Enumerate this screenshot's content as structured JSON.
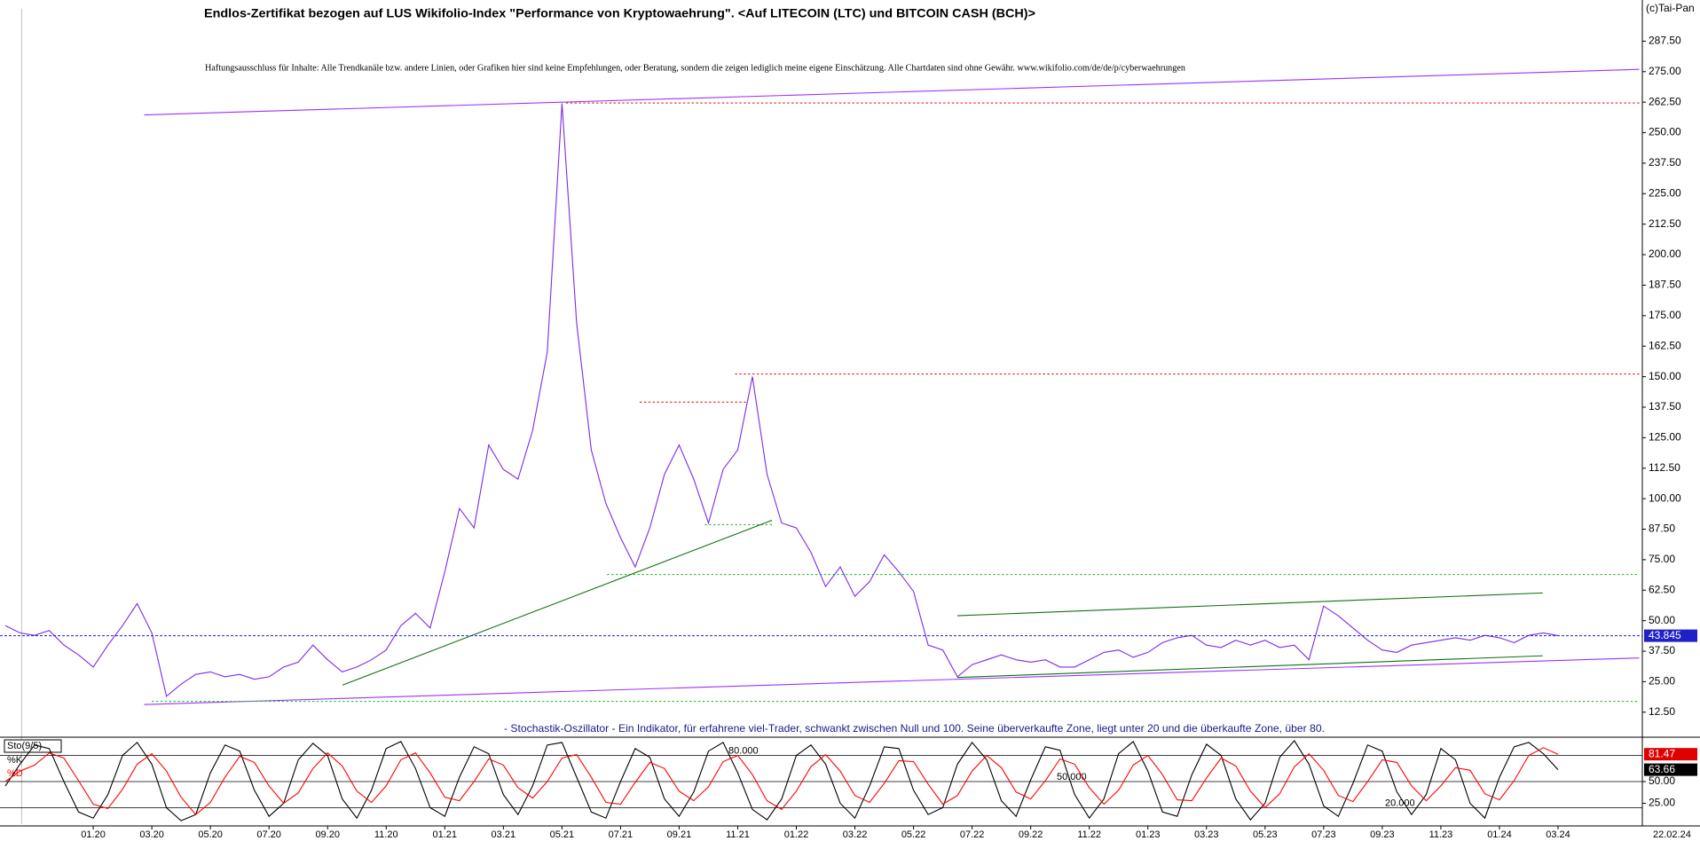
{
  "watermark": "(c)Tai-Pan",
  "date": "22.02.24",
  "chart_data": [
    {
      "type": "line",
      "title": "Endlos-Zertifikat bezogen auf LUS Wikifolio-Index \"Performance von Kryptowaehrung\". <Auf LITECOIN (LTC) und BITCOIN CASH (BCH)>",
      "subtitle": "Haftungsausschluss für Inhalte: Alle Trendkanäle bzw. andere Linien, oder Grafiken hier sind keine Empfehlungen, oder Beratung, sondern die zeigen lediglich meine eigene Einschätzung. Alle Chartdaten sind ohne Gewähr. www.wikifolio.com/de/de/p/cyberwaehrungen",
      "categories": [
        null,
        null,
        null,
        null,
        null,
        null,
        "01.20",
        null,
        null,
        null,
        "03.20",
        null,
        null,
        null,
        "05.20",
        null,
        null,
        null,
        "07.20",
        null,
        null,
        null,
        "09.20",
        null,
        null,
        null,
        "11.20",
        null,
        null,
        null,
        "01.21",
        null,
        null,
        null,
        "03.21",
        null,
        null,
        null,
        "05.21",
        null,
        null,
        null,
        "07.21",
        null,
        null,
        null,
        "09.21",
        null,
        null,
        null,
        "11.21",
        null,
        null,
        null,
        "01.22",
        null,
        null,
        null,
        "03.22",
        null,
        null,
        null,
        "05.22",
        null,
        null,
        null,
        "07.22",
        null,
        null,
        null,
        "09.22",
        null,
        null,
        null,
        "11.22",
        null,
        null,
        null,
        "01.23",
        null,
        null,
        null,
        "03.23",
        null,
        null,
        null,
        "05.23",
        null,
        null,
        null,
        "07.23",
        null,
        null,
        null,
        "09.23",
        null,
        null,
        null,
        "11.23",
        null,
        null,
        null,
        "01.24",
        null,
        null,
        null,
        "03.24"
      ],
      "series": [
        {
          "color": "#7b2be8",
          "values": [
            48,
            45,
            44,
            46,
            40,
            36,
            31,
            40,
            48,
            57,
            45,
            19,
            24,
            28,
            29,
            27,
            28,
            26,
            27,
            31,
            33,
            40,
            34,
            29,
            31,
            34,
            38,
            48,
            53,
            47,
            70,
            96,
            88,
            122,
            112,
            108,
            128,
            160,
            262,
            172,
            120,
            98,
            84,
            72,
            88,
            110,
            122,
            108,
            90,
            112,
            120,
            150,
            110,
            90,
            88,
            78,
            64,
            72,
            60,
            66,
            77,
            70,
            62,
            40,
            38,
            27,
            32,
            34,
            36,
            34,
            33,
            34,
            31,
            31,
            34,
            37,
            38,
            35,
            37,
            41,
            43,
            44,
            40,
            39,
            42,
            40,
            42,
            39,
            40,
            34,
            56,
            52,
            47,
            42,
            38,
            37,
            40,
            41,
            42,
            43,
            42,
            44,
            43,
            41,
            44,
            45,
            43.845
          ]
        }
      ],
      "ylim": [
        2.25,
        304.37
      ],
      "yticks": [
        {
          "value": 12.5,
          "label": "12.50"
        },
        {
          "value": 25,
          "label": "25.00"
        },
        {
          "value": 37.5,
          "label": "37.50"
        },
        {
          "value": 50,
          "label": "50.00"
        },
        {
          "value": 62.5,
          "label": "62.50"
        },
        {
          "value": 75,
          "label": "75.00"
        },
        {
          "value": 87.5,
          "label": "87.50"
        },
        {
          "value": 100,
          "label": "100.00"
        },
        {
          "value": 112.5,
          "label": "112.50"
        },
        {
          "value": 125,
          "label": "125.00"
        },
        {
          "value": 137.5,
          "label": "137.50"
        },
        {
          "value": 150,
          "label": "150.00"
        },
        {
          "value": 162.5,
          "label": "162.50"
        },
        {
          "value": 175,
          "label": "175.00"
        },
        {
          "value": 187.5,
          "label": "187.50"
        },
        {
          "value": 200,
          "label": "200.00"
        },
        {
          "value": 212.5,
          "label": "212.50"
        },
        {
          "value": 225,
          "label": "225.00"
        },
        {
          "value": 237.5,
          "label": "237.50"
        },
        {
          "value": 250,
          "label": "250.00"
        },
        {
          "value": 262.5,
          "label": "262.50"
        },
        {
          "value": 275,
          "label": "275.00"
        },
        {
          "value": 287.5,
          "label": "287.50"
        }
      ],
      "grid": false
    },
    {
      "type": "line",
      "title": "- Stochastik-Oszillator - Ein Indikator, für erfahrene viel-Trader, schwankt zwischen Null und 100. Seine überverkaufte Zone, liegt unter 20 und die überkaufte Zone, über 80.",
      "indicator": "Sto(9/5)",
      "series": [
        {
          "name": "%K",
          "color": "#000000",
          "values": [
            45,
            70,
            92,
            88,
            50,
            15,
            8,
            35,
            80,
            95,
            70,
            20,
            5,
            12,
            60,
            92,
            85,
            40,
            10,
            25,
            75,
            94,
            80,
            30,
            8,
            40,
            88,
            96,
            65,
            20,
            10,
            55,
            90,
            82,
            35,
            12,
            45,
            92,
            95,
            55,
            15,
            8,
            50,
            88,
            78,
            30,
            10,
            38,
            85,
            95,
            60,
            18,
            6,
            30,
            80,
            92,
            70,
            25,
            8,
            45,
            90,
            88,
            40,
            12,
            20,
            70,
            95,
            75,
            28,
            10,
            52,
            90,
            86,
            35,
            8,
            30,
            82,
            96,
            62,
            15,
            10,
            58,
            93,
            80,
            30,
            6,
            25,
            78,
            97,
            70,
            22,
            10,
            48,
            92,
            85,
            38,
            12,
            35,
            88,
            75,
            25,
            8,
            55,
            90,
            95,
            82,
            63.66
          ]
        },
        {
          "name": "%D",
          "color": "#ff0000",
          "values": [
            50,
            62,
            69,
            83,
            77,
            51,
            24,
            19,
            41,
            70,
            82,
            62,
            32,
            12,
            26,
            55,
            79,
            72,
            45,
            25,
            37,
            65,
            83,
            68,
            39,
            26,
            45,
            75,
            83,
            60,
            32,
            28,
            50,
            76,
            69,
            43,
            31,
            50,
            77,
            81,
            55,
            26,
            24,
            49,
            72,
            65,
            39,
            28,
            44,
            73,
            80,
            58,
            28,
            18,
            39,
            67,
            81,
            62,
            34,
            26,
            48,
            74,
            73,
            47,
            24,
            34,
            62,
            80,
            66,
            38,
            30,
            51,
            76,
            70,
            43,
            24,
            40,
            69,
            80,
            58,
            29,
            28,
            54,
            77,
            68,
            39,
            20,
            36,
            67,
            82,
            63,
            34,
            27,
            50,
            75,
            72,
            45,
            28,
            45,
            66,
            63,
            36,
            29,
            51,
            80,
            89,
            81.47
          ]
        }
      ],
      "ylim": [
        0,
        100
      ],
      "yticks": [
        {
          "value": 50,
          "label": "50.00"
        },
        {
          "value": 25,
          "label": "25.00"
        }
      ],
      "levels": [
        {
          "value": 80,
          "label": "80.000"
        },
        {
          "value": 50,
          "label": "50.000"
        },
        {
          "value": 20,
          "label": "20.000"
        }
      ]
    }
  ]
}
